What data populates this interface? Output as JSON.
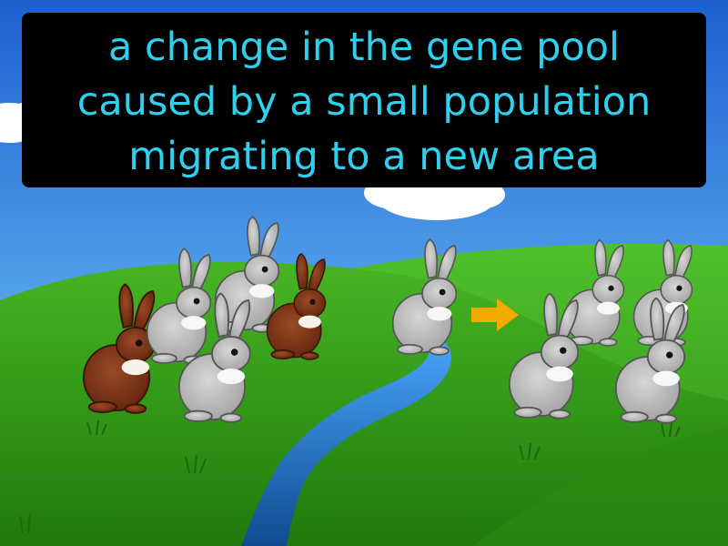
{
  "definition": {
    "lines": [
      "a change in the gene pool",
      "caused by a small population",
      "migrating to a new area"
    ]
  },
  "colors": {
    "sky": "#3d8fe0",
    "grass": "#39a51a",
    "river": "#1f74c4",
    "rabbit_gray": "#c2c2c2",
    "rabbit_brown": "#8a3a1c",
    "arrow": "#f2a900",
    "caption_text": "#2fd0ee",
    "caption_bg": "#000000"
  },
  "scene": {
    "arrow_icon": "arrow-right-icon"
  }
}
